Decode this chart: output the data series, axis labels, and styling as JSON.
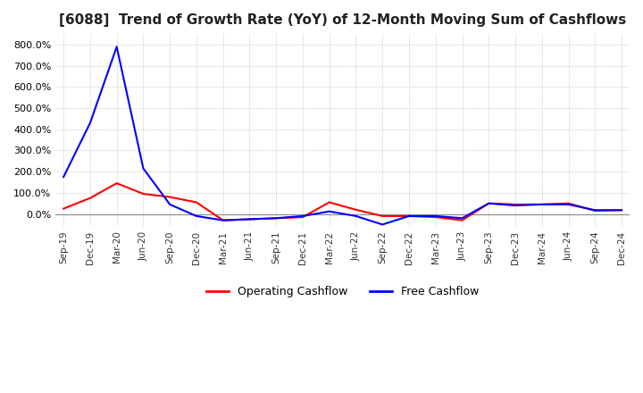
{
  "title": "[6088]  Trend of Growth Rate (YoY) of 12-Month Moving Sum of Cashflows",
  "title_fontsize": 11,
  "background_color": "#ffffff",
  "grid_color": "#aaaaaa",
  "ylim": [
    -60,
    850
  ],
  "yticks": [
    0,
    100,
    200,
    300,
    400,
    500,
    600,
    700,
    800
  ],
  "x_labels": [
    "Sep-19",
    "Dec-19",
    "Mar-20",
    "Jun-20",
    "Sep-20",
    "Dec-20",
    "Mar-21",
    "Jun-21",
    "Sep-21",
    "Dec-21",
    "Mar-22",
    "Jun-22",
    "Sep-22",
    "Dec-22",
    "Mar-23",
    "Jun-23",
    "Sep-23",
    "Dec-23",
    "Mar-24",
    "Jun-24",
    "Sep-24",
    "Dec-24"
  ],
  "operating_cashflow": [
    25,
    75,
    145,
    95,
    80,
    55,
    -30,
    -25,
    -20,
    -15,
    55,
    20,
    -10,
    -10,
    -15,
    -30,
    50,
    45,
    45,
    50,
    15,
    18
  ],
  "free_cashflow": [
    175,
    430,
    790,
    215,
    45,
    -10,
    -30,
    -25,
    -20,
    -10,
    12,
    -10,
    -50,
    -10,
    -10,
    -20,
    50,
    40,
    45,
    45,
    18,
    18
  ],
  "operating_color": "#ff0000",
  "free_color": "#0000ff",
  "legend_labels": [
    "Operating Cashflow",
    "Free Cashflow"
  ],
  "baseline_color": "#888888"
}
